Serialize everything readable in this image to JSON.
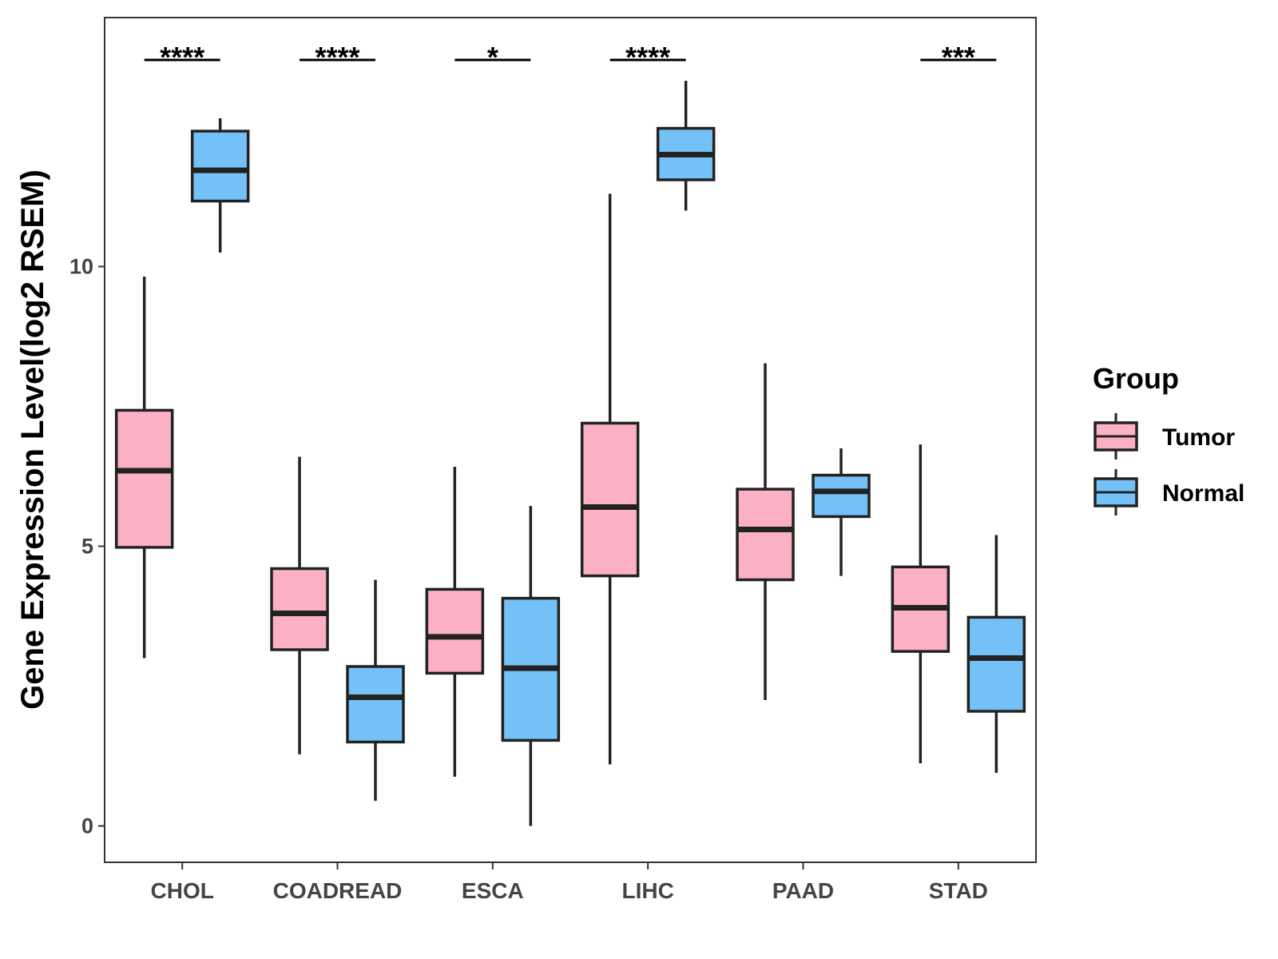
{
  "chart_data": {
    "type": "boxplot",
    "title": "",
    "xlabel": "",
    "ylabel": "Gene Expression Level(log2 RSEM)",
    "ylim": [
      -0.65,
      14.45
    ],
    "yticks": [
      0,
      5,
      10
    ],
    "categories": [
      "CHOL",
      "COADREAD",
      "ESCA",
      "LIHC",
      "PAAD",
      "STAD"
    ],
    "legend": {
      "title": "Group",
      "position": "right",
      "entries": [
        {
          "name": "Tumor",
          "color": "#FBB1C3"
        },
        {
          "name": "Normal",
          "color": "#74C1F8"
        }
      ]
    },
    "series": [
      {
        "name": "Tumor",
        "color": "#FBB1C3",
        "boxes": [
          {
            "whisker_low": 3.0,
            "q1": 4.98,
            "median": 6.35,
            "q3": 7.43,
            "whisker_high": 9.82
          },
          {
            "whisker_low": 1.28,
            "q1": 3.15,
            "median": 3.8,
            "q3": 4.6,
            "whisker_high": 6.6
          },
          {
            "whisker_low": 0.88,
            "q1": 2.73,
            "median": 3.38,
            "q3": 4.23,
            "whisker_high": 6.42
          },
          {
            "whisker_low": 1.1,
            "q1": 4.47,
            "median": 5.7,
            "q3": 7.2,
            "whisker_high": 11.3
          },
          {
            "whisker_low": 2.25,
            "q1": 4.4,
            "median": 5.3,
            "q3": 6.02,
            "whisker_high": 8.27
          },
          {
            "whisker_low": 1.12,
            "q1": 3.12,
            "median": 3.9,
            "q3": 4.63,
            "whisker_high": 6.82
          }
        ]
      },
      {
        "name": "Normal",
        "color": "#74C1F8",
        "boxes": [
          {
            "whisker_low": 10.25,
            "q1": 11.17,
            "median": 11.72,
            "q3": 12.42,
            "whisker_high": 12.65
          },
          {
            "whisker_low": 0.45,
            "q1": 1.5,
            "median": 2.3,
            "q3": 2.85,
            "whisker_high": 4.4
          },
          {
            "whisker_low": 0.0,
            "q1": 1.53,
            "median": 2.82,
            "q3": 4.07,
            "whisker_high": 5.72
          },
          {
            "whisker_low": 11.0,
            "q1": 11.55,
            "median": 12.0,
            "q3": 12.47,
            "whisker_high": 13.32
          },
          {
            "whisker_low": 4.47,
            "q1": 5.53,
            "median": 5.98,
            "q3": 6.27,
            "whisker_high": 6.75
          },
          {
            "whisker_low": 0.95,
            "q1": 2.05,
            "median": 3.0,
            "q3": 3.73,
            "whisker_high": 5.2
          }
        ]
      }
    ],
    "significance": [
      "****",
      "****",
      "*",
      "****",
      "",
      "***"
    ]
  }
}
